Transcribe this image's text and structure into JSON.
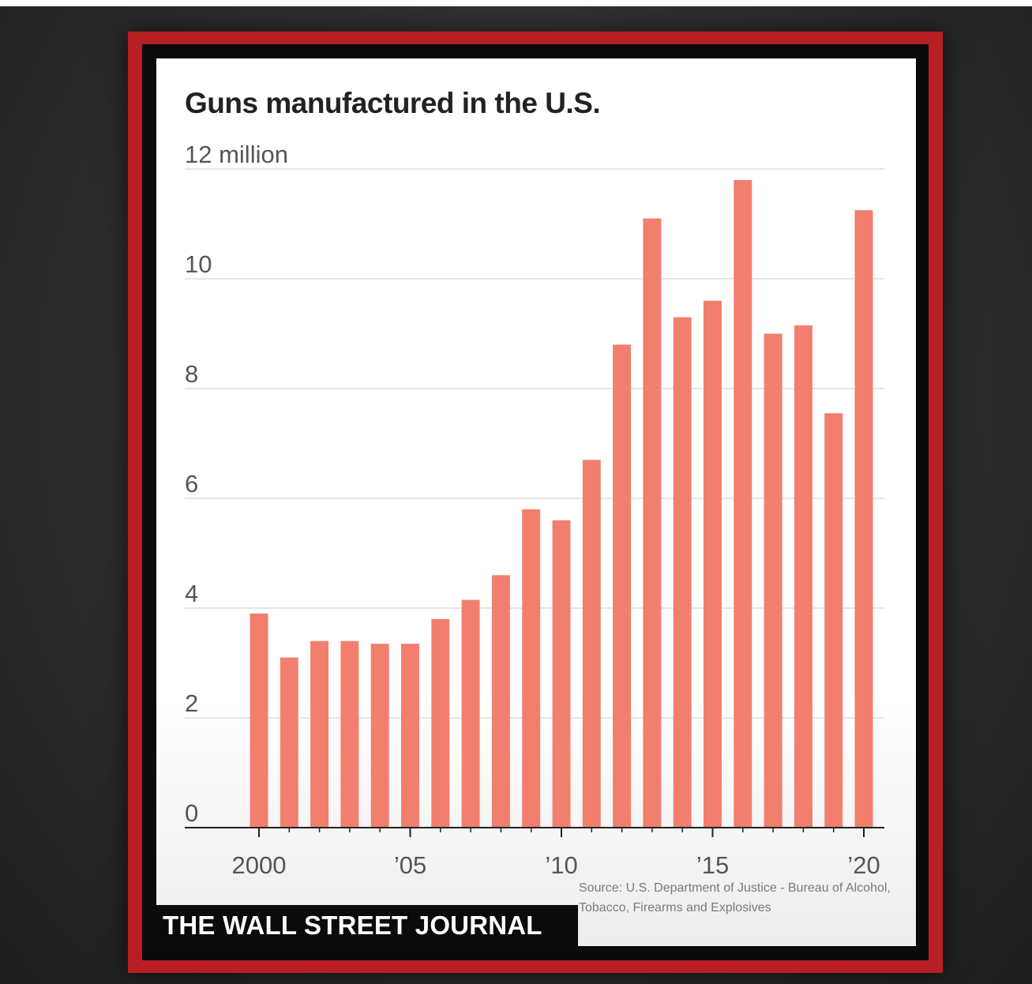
{
  "chart_data": {
    "type": "bar",
    "title": "Guns manufactured in the U.S.",
    "ylabel": "12 million",
    "xlabel": "",
    "unit": "million",
    "ylim": [
      0,
      12
    ],
    "y_ticks": [
      0,
      2,
      4,
      6,
      8,
      10,
      12
    ],
    "y_tick_labels": [
      "0",
      "2",
      "4",
      "6",
      "8",
      "10",
      "12 million"
    ],
    "x_tick_years": [
      2000,
      2005,
      2010,
      2015,
      2020
    ],
    "x_tick_labels": [
      "2000",
      "’05",
      "’10",
      "’15",
      "’20"
    ],
    "categories": [
      2000,
      2001,
      2002,
      2003,
      2004,
      2005,
      2006,
      2007,
      2008,
      2009,
      2010,
      2011,
      2012,
      2013,
      2014,
      2015,
      2016,
      2017,
      2018,
      2019,
      2020
    ],
    "values": [
      3.9,
      3.1,
      3.4,
      3.4,
      3.35,
      3.35,
      3.8,
      4.15,
      4.6,
      5.8,
      5.6,
      6.7,
      8.8,
      11.1,
      9.3,
      9.6,
      11.8,
      9.0,
      9.15,
      7.55,
      11.25
    ],
    "grid": true,
    "bar_color": "#f27f6e",
    "source": "Source: U.S. Department of Justice - Bureau of Alcohol, Tobacco, Firearms and Explosives"
  },
  "branding": {
    "publisher": "THE WALL STREET JOURNAL",
    "frame_color": "#b81f24"
  }
}
